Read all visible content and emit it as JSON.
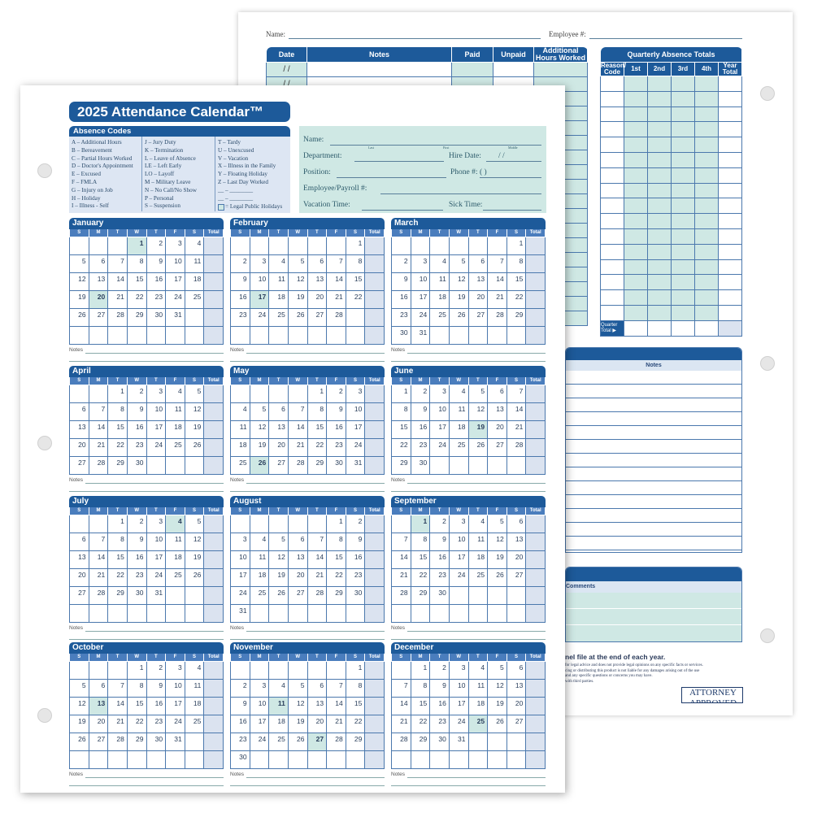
{
  "back": {
    "name_label": "Name:",
    "employee_label": "Employee #:",
    "table_headers": [
      "Date",
      "Notes",
      "Paid",
      "Unpaid",
      "Additional Hours Worked"
    ],
    "date_placeholder": "/   /",
    "quarterly": {
      "title": "Quarterly Absence Totals",
      "headers": [
        "Reason/ Code",
        "1st",
        "2nd",
        "3rd",
        "4th",
        "Year Total"
      ],
      "footer": "Quarter Total ▶"
    },
    "notes_title": "Notes",
    "comments_title": "Comments",
    "footer_main": "nel file at the end of each year.",
    "footer_small": [
      "for legal advice and does not provide legal opinions on any specific facts or services.",
      "cing or distributing this product is not liable for any damages arising out of the use",
      "and any specific questions or concerns you may have.",
      "with third parties."
    ],
    "logo": "ATTORNEY APPROVED"
  },
  "front": {
    "title": "2025 Attendance Calendar™",
    "codes_title": "Absence Codes",
    "codes": [
      [
        "A – Additional Hours",
        "B – Bereavement",
        "C – Partial Hours Worked",
        "D – Doctor's Appointment",
        "E – Excused",
        "F – FMLA",
        "G – Injury on Job",
        "H – Holiday",
        "I – Illness - Self"
      ],
      [
        "J – Jury Duty",
        "K – Termination",
        "L – Leave of Absence",
        "LE – Left Early",
        "LO – Layoff",
        "M – Military Leave",
        "N – No Call/No Show",
        "P – Personal",
        "S – Suspension"
      ],
      [
        "T – Tardy",
        "U – Unexcused",
        "V – Vacation",
        "X – Illness in the Family",
        "Y – Floating Holiday",
        "Z – Last Day Worked",
        "__ – ________",
        "__ – ________"
      ]
    ],
    "holiday_legend": "= Legal Public Holidays",
    "info": {
      "name": "Name:",
      "last": "Last",
      "first": "First",
      "middle": "Middle",
      "department": "Department:",
      "hire_date": "Hire Date:",
      "hire_slashes": "/          /",
      "position": "Position:",
      "phone": "Phone #:",
      "phone_paren": "(      )",
      "payroll": "Employee/Payroll #:",
      "vacation": "Vacation Time:",
      "sick": "Sick Time:"
    },
    "dow": [
      "S",
      "M",
      "T",
      "W",
      "T",
      "F",
      "S",
      "Total"
    ],
    "notes_label": "Notes",
    "months": [
      {
        "name": "January",
        "first_weekday": 3,
        "days": 31,
        "holidays": [
          1,
          20
        ]
      },
      {
        "name": "February",
        "first_weekday": 6,
        "days": 28,
        "holidays": [
          17
        ]
      },
      {
        "name": "March",
        "first_weekday": 6,
        "days": 31,
        "holidays": []
      },
      {
        "name": "April",
        "first_weekday": 2,
        "days": 30,
        "holidays": []
      },
      {
        "name": "May",
        "first_weekday": 4,
        "days": 31,
        "holidays": [
          26
        ]
      },
      {
        "name": "June",
        "first_weekday": 0,
        "days": 30,
        "holidays": [
          19
        ]
      },
      {
        "name": "July",
        "first_weekday": 2,
        "days": 31,
        "holidays": [
          4
        ]
      },
      {
        "name": "August",
        "first_weekday": 5,
        "days": 31,
        "holidays": []
      },
      {
        "name": "September",
        "first_weekday": 1,
        "days": 30,
        "holidays": [
          1
        ]
      },
      {
        "name": "October",
        "first_weekday": 3,
        "days": 31,
        "holidays": [
          13
        ]
      },
      {
        "name": "November",
        "first_weekday": 6,
        "days": 30,
        "holidays": [
          11,
          27
        ]
      },
      {
        "name": "December",
        "first_weekday": 1,
        "days": 31,
        "holidays": [
          25
        ]
      }
    ]
  },
  "colors": {
    "dark_blue": "#1d5a9a",
    "mid_blue": "#4a7dbd",
    "teal": "#cfe8e4",
    "total_col": "#dbe3f0"
  }
}
